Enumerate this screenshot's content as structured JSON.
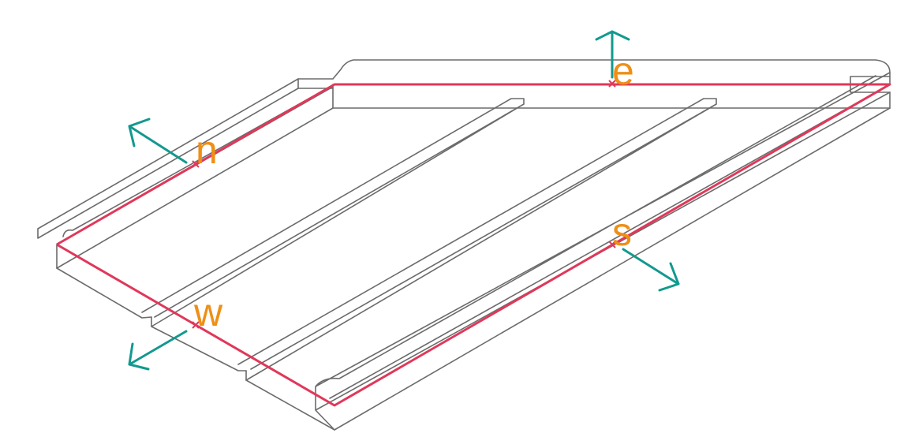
{
  "labels": {
    "north": "n",
    "east": "e",
    "south": "s",
    "west": "w"
  },
  "colors": {
    "outline": "#6b6b6b",
    "path": "#e0385a",
    "arrow": "#12998f",
    "label": "#ee8f16"
  }
}
